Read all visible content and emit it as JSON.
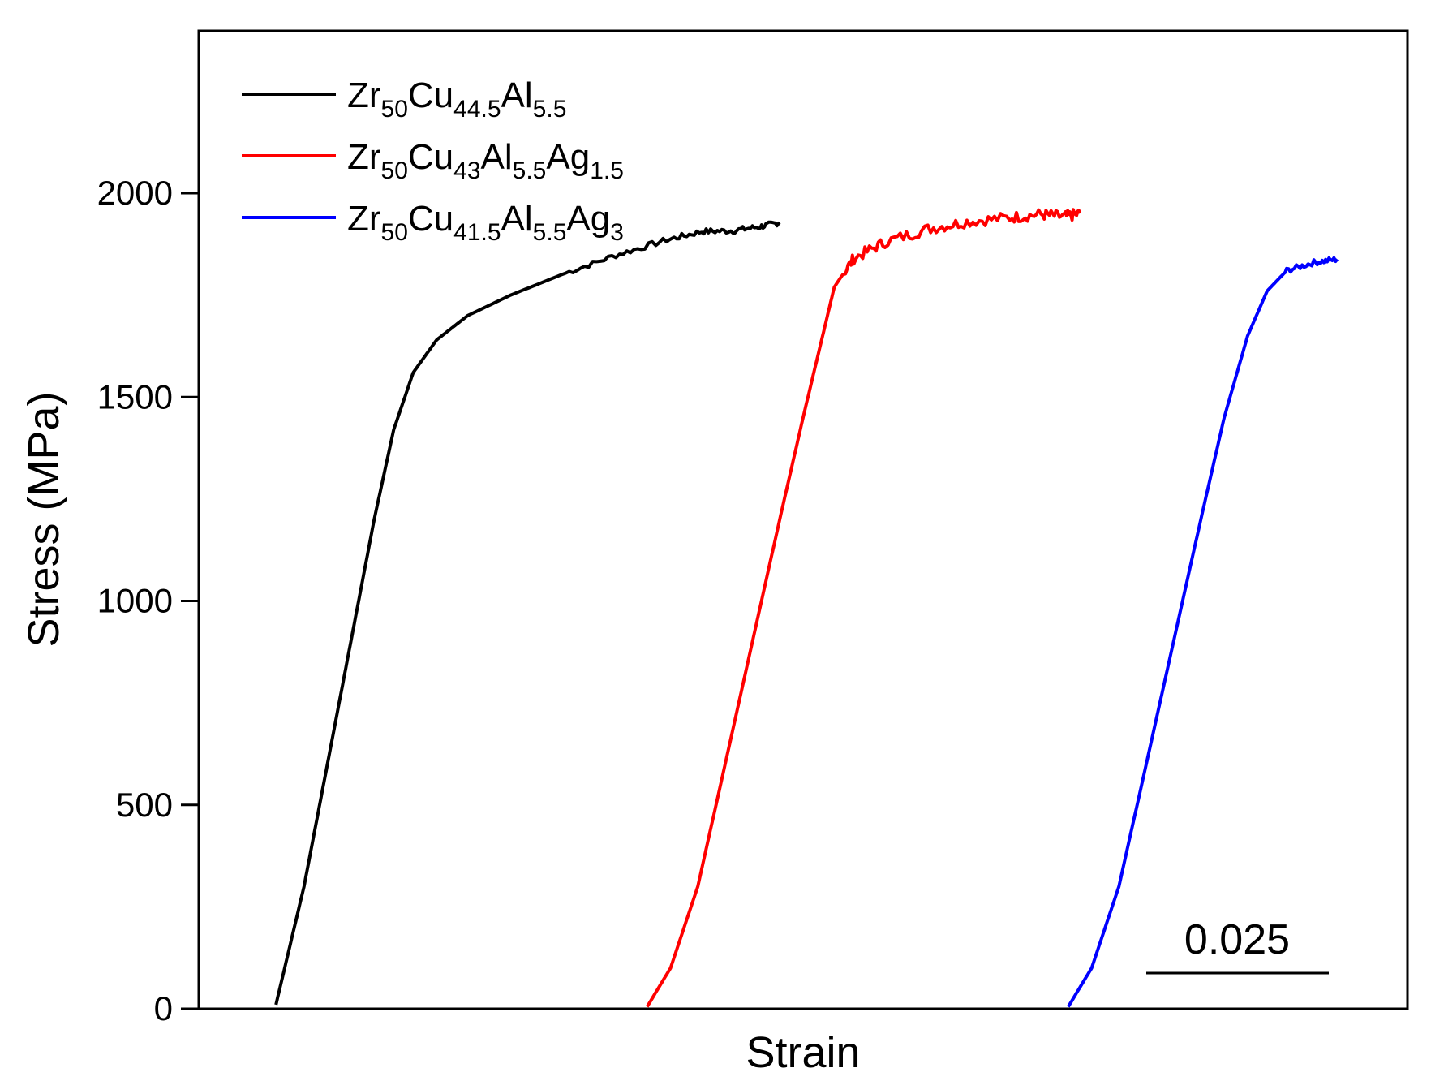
{
  "chart_data": {
    "type": "line",
    "title": "",
    "xlabel": "Strain",
    "ylabel": "Stress (MPa)",
    "ylim": [
      0,
      2400
    ],
    "xlim": [
      0,
      0.155
    ],
    "yticks": [
      0,
      500,
      1000,
      1500,
      2000
    ],
    "xticks_shown": false,
    "grid": false,
    "legend_position": "top-left",
    "scale_bar": {
      "label": "0.025",
      "value": 0.025
    },
    "series": [
      {
        "name": "Zr50Cu44.5Al5.5",
        "label_parts": [
          [
            "Zr",
            ""
          ],
          [
            "50",
            "sub"
          ],
          [
            "Cu",
            ""
          ],
          [
            "44.5",
            "sub"
          ],
          [
            "Al",
            ""
          ],
          [
            "5.5",
            "sub"
          ]
        ],
        "color": "#000000",
        "points": [
          [
            0.0099,
            10
          ],
          [
            0.0135,
            300
          ],
          [
            0.0165,
            600
          ],
          [
            0.0195,
            900
          ],
          [
            0.0225,
            1200
          ],
          [
            0.025,
            1420
          ],
          [
            0.0275,
            1560
          ],
          [
            0.0305,
            1640
          ],
          [
            0.0345,
            1700
          ],
          [
            0.04,
            1750
          ],
          [
            0.0465,
            1800
          ],
          [
            0.0535,
            1848
          ],
          [
            0.06,
            1885
          ],
          [
            0.0645,
            1906
          ],
          [
            0.0685,
            1908
          ],
          [
            0.072,
            1918
          ],
          [
            0.0745,
            1928
          ]
        ]
      },
      {
        "name": "Zr50Cu43Al5.5Ag1.5",
        "label_parts": [
          [
            "Zr",
            ""
          ],
          [
            "50",
            "sub"
          ],
          [
            "Cu",
            ""
          ],
          [
            "43",
            "sub"
          ],
          [
            "Al",
            ""
          ],
          [
            "5.5",
            "sub"
          ],
          [
            "Ag",
            ""
          ],
          [
            "1.5",
            "sub"
          ]
        ],
        "color": "#ff0000",
        "points": [
          [
            0.0575,
            5
          ],
          [
            0.0605,
            100
          ],
          [
            0.064,
            300
          ],
          [
            0.0675,
            600
          ],
          [
            0.071,
            900
          ],
          [
            0.0745,
            1200
          ],
          [
            0.0775,
            1450
          ],
          [
            0.08,
            1650
          ],
          [
            0.0815,
            1770
          ],
          [
            0.084,
            1840
          ],
          [
            0.088,
            1880
          ],
          [
            0.0935,
            1912
          ],
          [
            0.0985,
            1930
          ],
          [
            0.104,
            1940
          ],
          [
            0.108,
            1948
          ],
          [
            0.111,
            1942
          ],
          [
            0.113,
            1950
          ]
        ]
      },
      {
        "name": "Zr50Cu41.5Al5.5Ag3",
        "label_parts": [
          [
            "Zr",
            ""
          ],
          [
            "50",
            "sub"
          ],
          [
            "Cu",
            ""
          ],
          [
            "41.5",
            "sub"
          ],
          [
            "Al",
            ""
          ],
          [
            "5.5",
            "sub"
          ],
          [
            "Ag",
            ""
          ],
          [
            "3",
            "sub"
          ]
        ],
        "color": "#0000ff",
        "points": [
          [
            0.1115,
            5
          ],
          [
            0.1145,
            100
          ],
          [
            0.118,
            300
          ],
          [
            0.1215,
            600
          ],
          [
            0.125,
            900
          ],
          [
            0.1285,
            1200
          ],
          [
            0.1315,
            1450
          ],
          [
            0.1345,
            1650
          ],
          [
            0.137,
            1760
          ],
          [
            0.1395,
            1810
          ],
          [
            0.143,
            1830
          ],
          [
            0.146,
            1838
          ]
        ]
      }
    ]
  }
}
